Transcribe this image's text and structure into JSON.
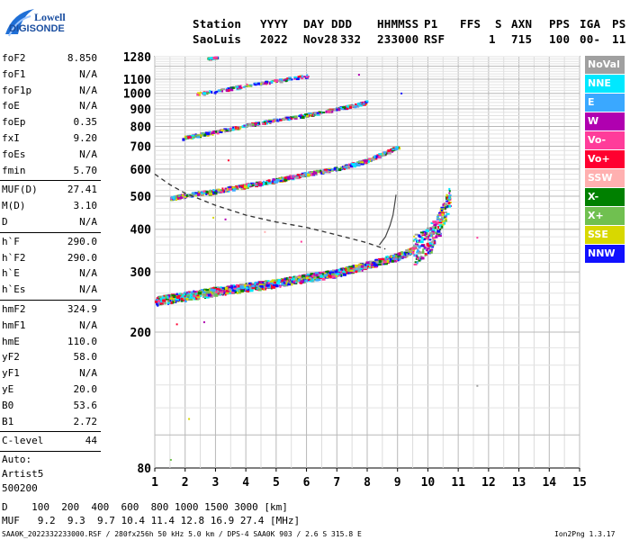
{
  "logo": {
    "line1": "Lowell",
    "line2": "DIGISONDE"
  },
  "header": {
    "row1": [
      "Station",
      "YYYY",
      "DAY",
      "DDD",
      "HHMMSS",
      "P1",
      "FFS",
      "S",
      "AXN",
      "PPS",
      "IGA",
      "PS"
    ],
    "row2": [
      "SaoLuis",
      "2022",
      "Nov28",
      "332",
      "233000",
      "RSF",
      "1",
      "715",
      "100",
      "00-",
      "11"
    ]
  },
  "params_group1": [
    {
      "label": "foF2",
      "value": "8.850"
    },
    {
      "label": "foF1",
      "value": "N/A"
    },
    {
      "label": "foF1p",
      "value": "N/A"
    },
    {
      "label": "foE",
      "value": "N/A"
    },
    {
      "label": "foEp",
      "value": "0.35"
    },
    {
      "label": "fxI",
      "value": "9.20"
    },
    {
      "label": "foEs",
      "value": "N/A"
    },
    {
      "label": "fmin",
      "value": "5.70"
    }
  ],
  "params_group2": [
    {
      "label": "MUF(D)",
      "value": "27.41"
    },
    {
      "label": "M(D)",
      "value": "3.10"
    },
    {
      "label": "D",
      "value": "N/A"
    }
  ],
  "params_group3": [
    {
      "label": "h`F",
      "value": "290.0"
    },
    {
      "label": "h`F2",
      "value": "290.0"
    },
    {
      "label": "h`E",
      "value": "N/A"
    },
    {
      "label": "h`Es",
      "value": "N/A"
    }
  ],
  "params_group4": [
    {
      "label": "hmF2",
      "value": "324.9"
    },
    {
      "label": "hmF1",
      "value": "N/A"
    },
    {
      "label": "hmE",
      "value": "110.0"
    },
    {
      "label": "yF2",
      "value": "58.0"
    },
    {
      "label": "yF1",
      "value": "N/A"
    },
    {
      "label": "yE",
      "value": "20.0"
    },
    {
      "label": "B0",
      "value": "53.6"
    },
    {
      "label": "B1",
      "value": "2.72"
    }
  ],
  "params_group5": [
    {
      "label": "C-level",
      "value": "44"
    }
  ],
  "auto": {
    "line1": "Auto:",
    "line2": "Artist5",
    "line3": "500200"
  },
  "legend": [
    {
      "label": "NoVal",
      "color": "#a0a0a0"
    },
    {
      "label": "NNE",
      "color": "#00e8ff"
    },
    {
      "label": "E",
      "color": "#3aa8ff"
    },
    {
      "label": "W",
      "color": "#b000b0"
    },
    {
      "label": "Vo-",
      "color": "#ff3c9a"
    },
    {
      "label": "Vo+",
      "color": "#ff0030"
    },
    {
      "label": "SSW",
      "color": "#ffb0b0"
    },
    {
      "label": "X-",
      "color": "#008000"
    },
    {
      "label": "X+",
      "color": "#70c050"
    },
    {
      "label": "SSE",
      "color": "#d8d800"
    },
    {
      "label": "NNW",
      "color": "#1010ff"
    }
  ],
  "footer": {
    "d_line": "D    100  200  400  600  800 1000 1500 3000 [km]",
    "muf_line": "MUF   9.2  9.3  9.7 10.4 11.4 12.8 16.9 27.4 [MHz]",
    "file_line": "SAA0K_2022332233000.RSF / 280fx256h 50 kHz 5.0 km / DPS-4 SAA0K 903 / 2.6 S 315.8 E",
    "version": "Ion2Png 1.3.17"
  },
  "chart_data": {
    "type": "scatter",
    "xlim": [
      1,
      15
    ],
    "xticks": [
      1,
      2,
      3,
      4,
      5,
      6,
      7,
      8,
      9,
      10,
      11,
      12,
      13,
      14,
      15
    ],
    "yticks": [
      80,
      200,
      300,
      400,
      500,
      600,
      700,
      800,
      900,
      1000,
      1100,
      1280
    ],
    "y_scale": "log",
    "grid": true,
    "traces": [
      {
        "name": "F2 O-trace",
        "x": [
          1.0,
          2.0,
          3.0,
          4.0,
          5.0,
          6.0,
          7.0,
          8.0,
          9.0,
          9.5,
          10.0,
          10.3,
          10.5,
          10.7
        ],
        "y": [
          248,
          256,
          265,
          272,
          280,
          290,
          300,
          316,
          335,
          350,
          375,
          410,
          450,
          500
        ]
      },
      {
        "name": "2-hop",
        "x": [
          1.5,
          2.0,
          3.0,
          4.0,
          5.0,
          6.0,
          7.0,
          8.0,
          8.5,
          9.0
        ],
        "y": [
          495,
          505,
          520,
          540,
          560,
          585,
          605,
          640,
          670,
          700
        ]
      },
      {
        "name": "3-hop",
        "x": [
          1.9,
          3.0,
          4.0,
          5.0,
          6.0,
          7.0,
          7.5,
          8.0
        ],
        "y": [
          745,
          775,
          810,
          840,
          870,
          905,
          925,
          950
        ]
      },
      {
        "name": "4-hop",
        "x": [
          2.3,
          3.0,
          4.0,
          5.0,
          6.0
        ],
        "y": [
          1000,
          1020,
          1060,
          1095,
          1130
        ]
      },
      {
        "name": "5-hop",
        "x": [
          2.7,
          3.0
        ],
        "y": [
          1270,
          1280
        ]
      }
    ],
    "profile_dashed": {
      "x": [
        1.0,
        1.5,
        2.0,
        3.0,
        4.0,
        5.0,
        6.0,
        7.0,
        8.0,
        8.6
      ],
      "y": [
        580,
        540,
        510,
        470,
        440,
        420,
        405,
        385,
        365,
        350
      ]
    },
    "profile_solid": {
      "x": [
        8.4,
        8.6,
        8.75,
        8.85,
        8.9,
        8.95
      ],
      "y": [
        360,
        380,
        410,
        440,
        470,
        505
      ]
    }
  }
}
